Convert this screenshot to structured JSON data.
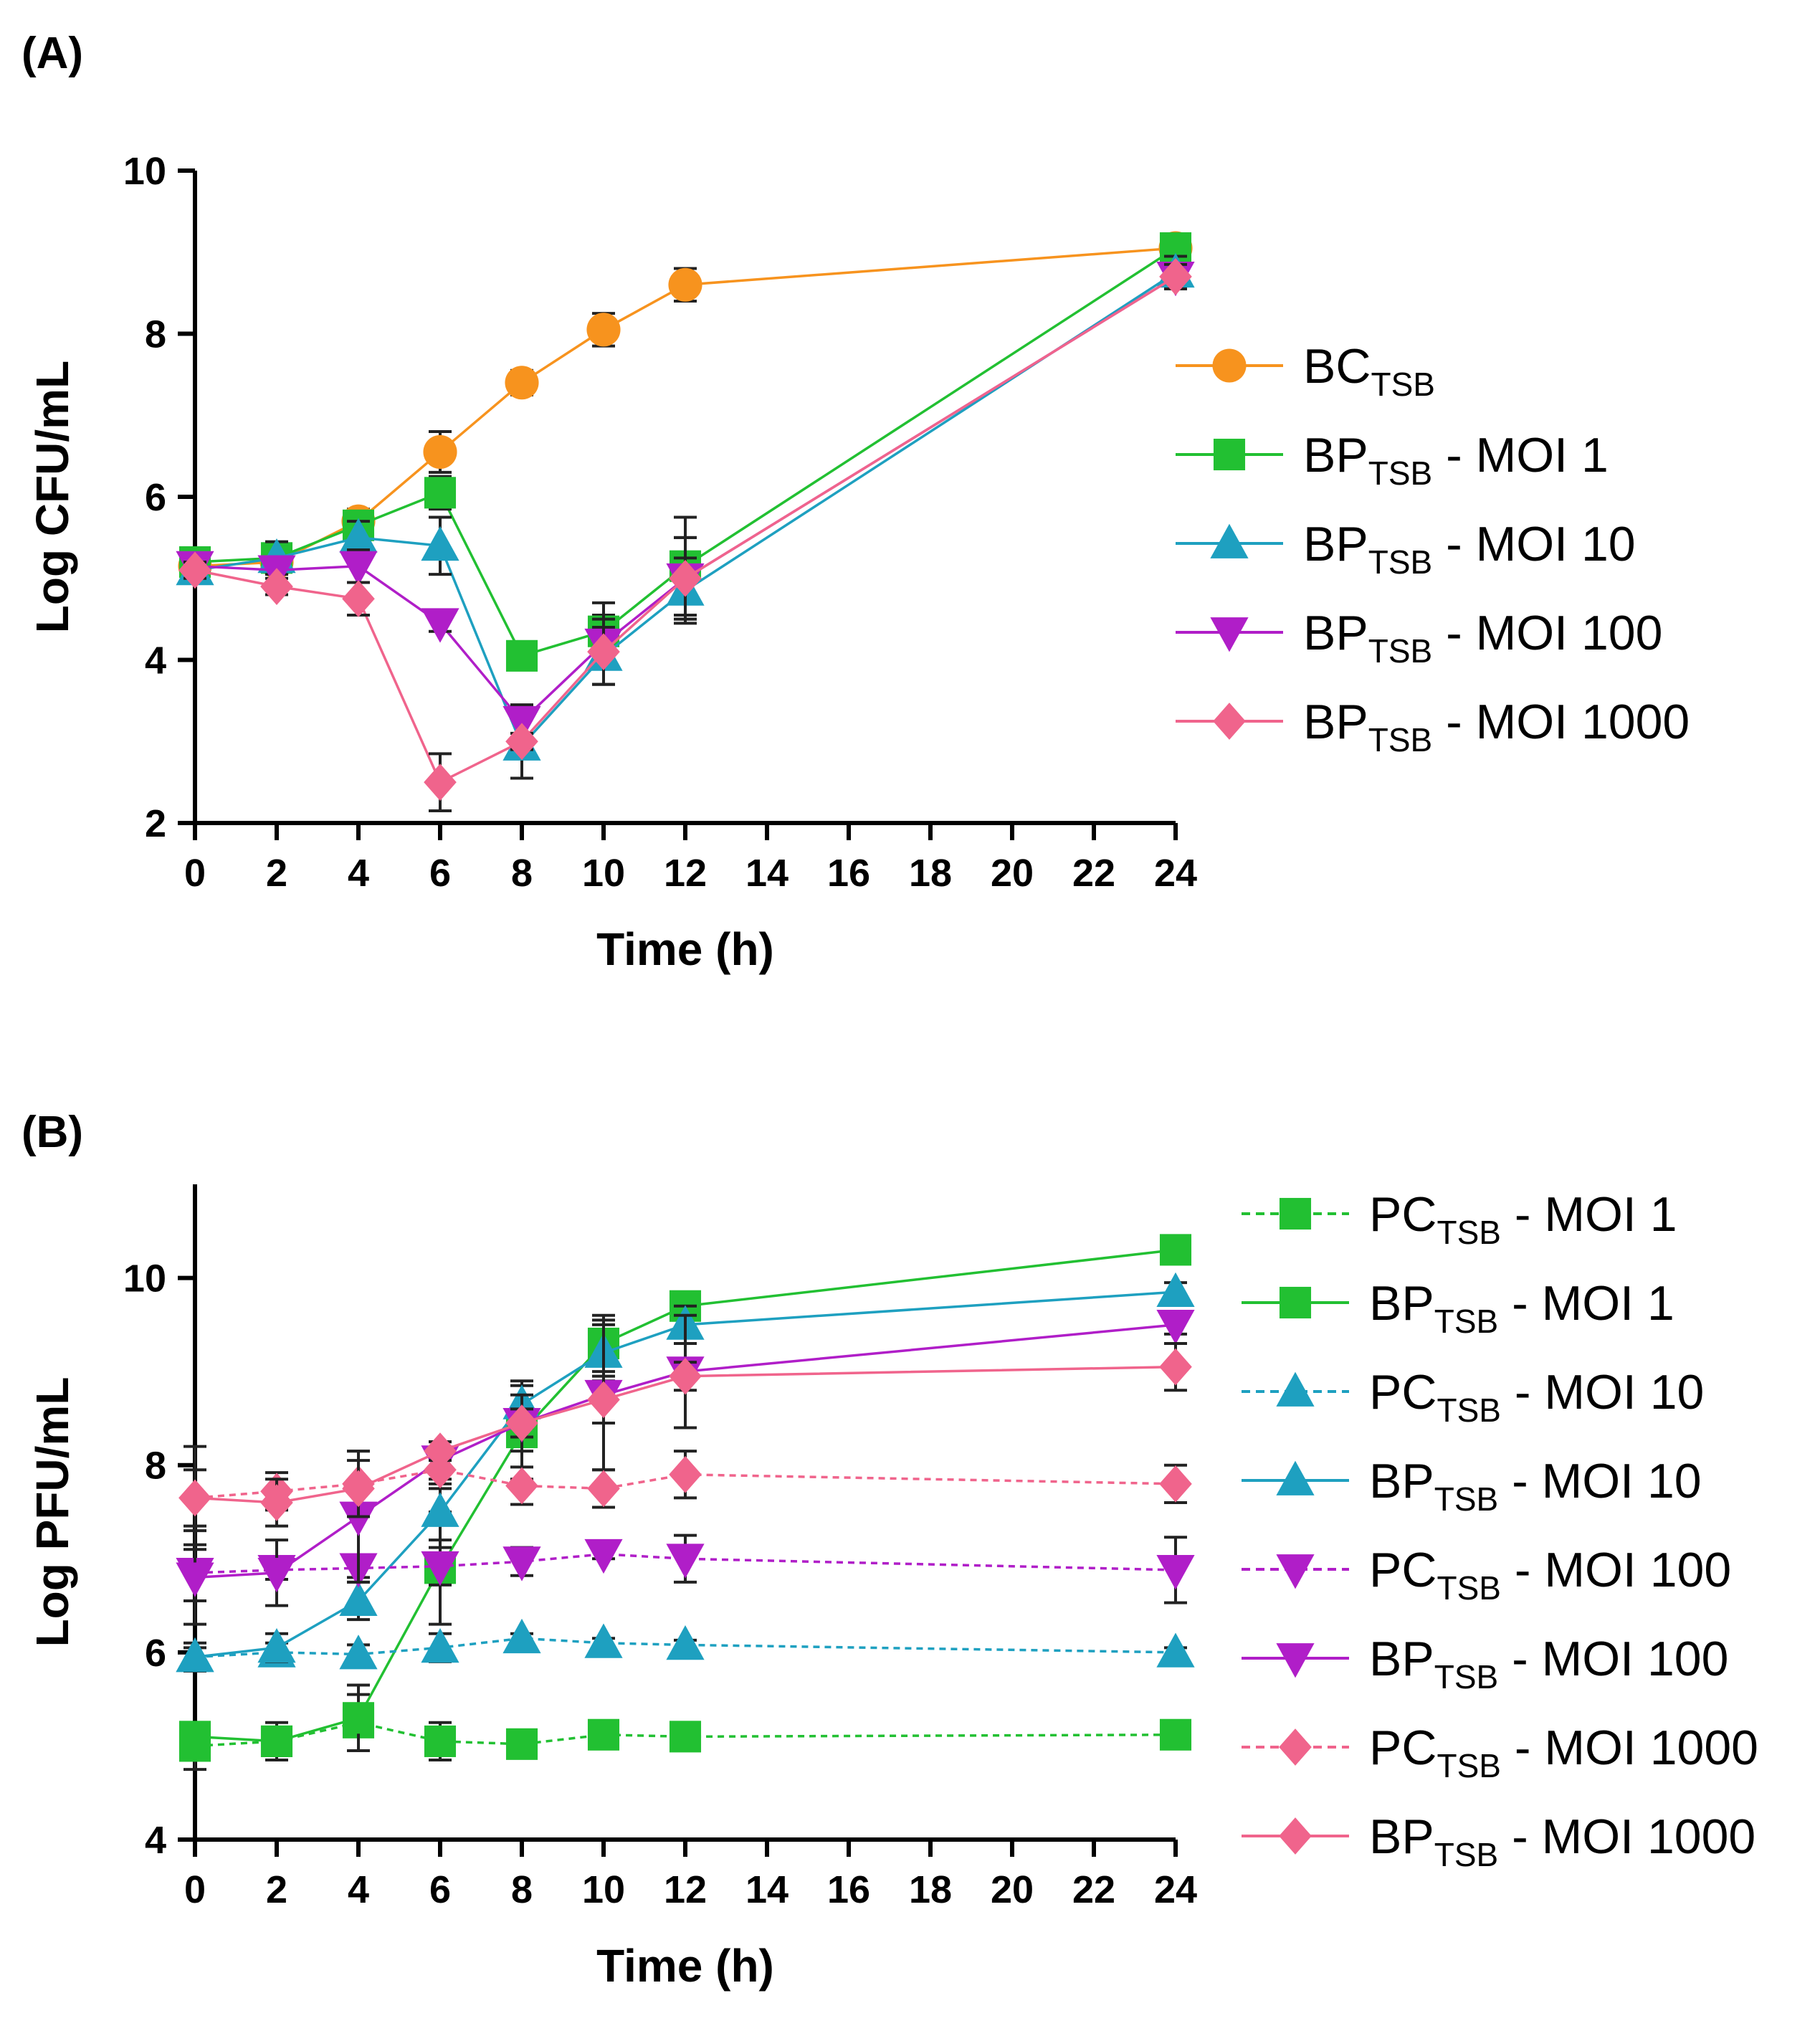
{
  "chart_data": [
    {
      "panel_label": "(A)",
      "type": "line",
      "xlabel": "Time (h)",
      "ylabel": "Log CFU/mL",
      "xlim": [
        0,
        24
      ],
      "ylim": [
        2,
        10
      ],
      "xticks": [
        0,
        2,
        4,
        6,
        8,
        10,
        12,
        14,
        16,
        18,
        20,
        22,
        24
      ],
      "yticks": [
        2,
        4,
        6,
        8,
        10
      ],
      "x": [
        0,
        2,
        4,
        6,
        8,
        10,
        12,
        24
      ],
      "legend_position": "right",
      "series": [
        {
          "name": "BC",
          "sub": "TSB",
          "suffix": "",
          "color": "#F7931E",
          "marker": "circle",
          "dash": false,
          "values": [
            5.15,
            5.2,
            5.7,
            6.55,
            7.4,
            8.05,
            8.6,
            9.05
          ],
          "errors": [
            0.1,
            0.1,
            0.15,
            0.25,
            0.15,
            0.2,
            0.2,
            0.1
          ]
        },
        {
          "name": "BP",
          "sub": "TSB",
          "suffix": " - MOI 1",
          "color": "#22C032",
          "marker": "square",
          "dash": false,
          "values": [
            5.2,
            5.25,
            5.65,
            6.05,
            4.05,
            4.35,
            5.15,
            9.05
          ],
          "errors": [
            0.1,
            0.15,
            0.15,
            0.2,
            0.1,
            0.2,
            0.6,
            0.1
          ]
        },
        {
          "name": "BP",
          "sub": "TSB",
          "suffix": " - MOI 10",
          "color": "#1EA0C0",
          "marker": "triangle",
          "dash": false,
          "values": [
            5.1,
            5.25,
            5.5,
            5.4,
            2.95,
            4.05,
            4.85,
            8.75
          ],
          "errors": [
            0.1,
            0.2,
            0.2,
            0.35,
            0.4,
            0.35,
            0.4,
            0.2
          ]
        },
        {
          "name": "BP",
          "sub": "TSB",
          "suffix": " - MOI 100",
          "color": "#B01EC8",
          "marker": "triangle-down",
          "dash": false,
          "values": [
            5.15,
            5.1,
            5.15,
            4.45,
            3.25,
            4.2,
            5.0,
            8.7
          ],
          "errors": [
            0.1,
            0.15,
            0.2,
            0.1,
            0.2,
            0.5,
            0.5,
            0.15
          ]
        },
        {
          "name": "BP",
          "sub": "TSB",
          "suffix": " - MOI 1000",
          "color": "#F0648C",
          "marker": "diamond",
          "dash": false,
          "values": [
            5.1,
            4.9,
            4.75,
            2.5,
            3.0,
            4.1,
            5.0,
            8.7
          ],
          "errors": [
            0.1,
            0.1,
            0.2,
            0.35,
            0.1,
            0.4,
            0.5,
            0.15
          ]
        }
      ]
    },
    {
      "panel_label": "(B)",
      "type": "line",
      "xlabel": "Time (h)",
      "ylabel": "Log PFU/mL",
      "xlim": [
        0,
        24
      ],
      "ylim": [
        4,
        11
      ],
      "xticks": [
        0,
        2,
        4,
        6,
        8,
        10,
        12,
        14,
        16,
        18,
        20,
        22,
        24
      ],
      "yticks": [
        4,
        6,
        8,
        10
      ],
      "x": [
        0,
        2,
        4,
        6,
        8,
        10,
        12,
        24
      ],
      "legend_position": "right",
      "series": [
        {
          "name": "PC",
          "sub": "TSB",
          "suffix": " - MOI 1",
          "color": "#22C032",
          "marker": "square",
          "dash": true,
          "values": [
            5.0,
            5.05,
            5.25,
            5.05,
            5.02,
            5.12,
            5.1,
            5.12
          ],
          "errors": [
            0.25,
            0.2,
            0.3,
            0.2,
            0.05,
            0.08,
            0.05,
            0.05
          ]
        },
        {
          "name": "BP",
          "sub": "TSB",
          "suffix": " - MOI 1",
          "color": "#22C032",
          "marker": "square",
          "dash": false,
          "values": [
            5.1,
            5.05,
            5.3,
            6.9,
            8.35,
            9.3,
            9.7,
            10.3
          ],
          "errors": [
            0.15,
            0.15,
            0.35,
            0.6,
            0.5,
            0.3,
            0.1,
            0.1
          ]
        },
        {
          "name": "PC",
          "sub": "TSB",
          "suffix": " - MOI 10",
          "color": "#1EA0C0",
          "marker": "triangle",
          "dash": true,
          "values": [
            5.95,
            6.0,
            5.98,
            6.05,
            6.15,
            6.1,
            6.08,
            6.0
          ],
          "errors": [
            0.1,
            0.1,
            0.1,
            0.15,
            0.05,
            0.05,
            0.05,
            0.05
          ]
        },
        {
          "name": "BP",
          "sub": "TSB",
          "suffix": " - MOI 10",
          "color": "#1EA0C0",
          "marker": "triangle",
          "dash": false,
          "values": [
            5.95,
            6.05,
            6.55,
            7.5,
            8.65,
            9.2,
            9.5,
            9.85
          ],
          "errors": [
            0.15,
            0.15,
            0.2,
            0.3,
            0.25,
            0.3,
            0.2,
            0.1
          ]
        },
        {
          "name": "PC",
          "sub": "TSB",
          "suffix": " - MOI 100",
          "color": "#B01EC8",
          "marker": "triangle-down",
          "dash": true,
          "values": [
            6.85,
            6.88,
            6.9,
            6.92,
            6.97,
            7.05,
            7.0,
            6.88
          ],
          "errors": [
            0.3,
            0.1,
            0.1,
            0.2,
            0.15,
            0.05,
            0.25,
            0.35
          ]
        },
        {
          "name": "BP",
          "sub": "TSB",
          "suffix": " - MOI 100",
          "color": "#B01EC8",
          "marker": "triangle-down",
          "dash": false,
          "values": [
            6.8,
            6.85,
            7.45,
            8.05,
            8.45,
            8.75,
            9.0,
            9.5
          ],
          "errors": [
            0.5,
            0.35,
            0.7,
            0.2,
            0.3,
            0.8,
            0.6,
            0.1
          ]
        },
        {
          "name": "PC",
          "sub": "TSB",
          "suffix": " - MOI 1000",
          "color": "#F0648C",
          "marker": "diamond",
          "dash": true,
          "values": [
            7.65,
            7.72,
            7.8,
            7.95,
            7.78,
            7.75,
            7.9,
            7.8
          ],
          "errors": [
            0.55,
            0.2,
            0.35,
            0.2,
            0.2,
            0.2,
            0.25,
            0.2
          ]
        },
        {
          "name": "BP",
          "sub": "TSB",
          "suffix": " - MOI 1000",
          "color": "#F0648C",
          "marker": "diamond",
          "dash": false,
          "values": [
            7.65,
            7.6,
            7.75,
            8.15,
            8.45,
            8.7,
            8.95,
            9.05
          ],
          "errors": [
            0.3,
            0.25,
            0.3,
            0.1,
            0.15,
            0.25,
            0.15,
            0.25
          ]
        }
      ]
    }
  ]
}
